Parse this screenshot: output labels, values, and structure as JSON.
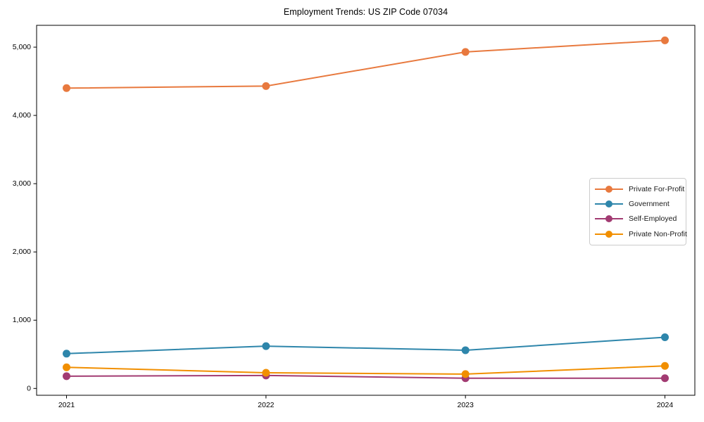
{
  "title": "Employment Trends: US ZIP Code 07034",
  "chart_data": {
    "type": "line",
    "title": "Employment Trends: US ZIP Code 07034",
    "xlabel": "",
    "ylabel": "",
    "x": [
      2021,
      2022,
      2023,
      2024
    ],
    "x_tick_labels": [
      "2021",
      "2022",
      "2023",
      "2024"
    ],
    "y_ticks": [
      0,
      1000,
      2000,
      3000,
      4000,
      5000
    ],
    "y_tick_labels": [
      "0",
      "1,000",
      "2,000",
      "3,000",
      "4,000",
      "5,000"
    ],
    "xlim": [
      2020.85,
      2024.15
    ],
    "ylim": [
      -100,
      5320
    ],
    "grid": false,
    "legend_position": "center right",
    "marker": "circle",
    "series": [
      {
        "name": "Private For-Profit",
        "color": "#E8793E",
        "values": [
          4400,
          4430,
          4930,
          5100
        ]
      },
      {
        "name": "Government",
        "color": "#2E86AB",
        "values": [
          510,
          620,
          560,
          750
        ]
      },
      {
        "name": "Self-Employed",
        "color": "#A23B72",
        "values": [
          180,
          190,
          150,
          150
        ]
      },
      {
        "name": "Private Non-Profit",
        "color": "#F18F01",
        "values": [
          310,
          230,
          210,
          330
        ]
      }
    ]
  }
}
